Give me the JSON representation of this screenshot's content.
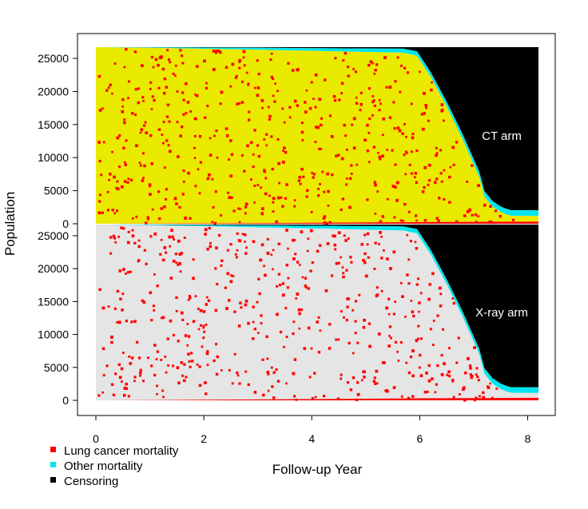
{
  "chart_data": {
    "type": "area",
    "xlabel": "Follow-up Year",
    "ylabel": "Population",
    "xlim": [
      0,
      8.2
    ],
    "ylim": [
      0,
      26700
    ],
    "x_ticks": [
      "0",
      "2",
      "4",
      "6",
      "8"
    ],
    "y_ticks": [
      "0",
      "5000",
      "10000",
      "15000",
      "20000",
      "25000"
    ],
    "legend": {
      "position": "bottom-left",
      "entries": [
        {
          "label": "Lung cancer mortality",
          "color": "#ff0000"
        },
        {
          "label": "Other mortality",
          "color": "#00e5ee"
        },
        {
          "label": "Censoring",
          "color": "#000000"
        }
      ]
    },
    "panels": [
      {
        "arm_label": "CT arm",
        "alive_color": "#eaea00",
        "x": [
          0,
          1,
          2,
          3,
          4,
          5,
          5.7,
          5.95,
          6.2,
          6.5,
          6.8,
          7.1,
          7.2,
          7.35,
          7.5,
          7.62,
          7.7,
          8.2
        ],
        "lung_cancer_mortality": [
          0,
          30,
          60,
          100,
          140,
          190,
          230,
          240,
          250,
          260,
          270,
          280,
          285,
          290,
          300,
          300,
          300,
          320
        ],
        "other_mortality": [
          0,
          80,
          180,
          300,
          420,
          540,
          620,
          650,
          690,
          730,
          770,
          800,
          810,
          820,
          830,
          840,
          850,
          860
        ],
        "censoring": [
          0,
          0,
          0,
          0,
          0,
          0,
          0,
          400,
          3500,
          8000,
          13000,
          18500,
          21500,
          23000,
          23800,
          24200,
          24350,
          24350
        ]
      },
      {
        "arm_label": "X-ray arm",
        "alive_color": "#e5e5e5",
        "x": [
          0,
          1,
          2,
          3,
          4,
          5,
          5.7,
          5.95,
          6.2,
          6.5,
          6.8,
          7.1,
          7.2,
          7.35,
          7.5,
          7.62,
          7.7,
          8.2
        ],
        "lung_cancer_mortality": [
          0,
          40,
          80,
          130,
          180,
          240,
          290,
          300,
          310,
          320,
          330,
          340,
          345,
          350,
          360,
          360,
          360,
          380
        ],
        "other_mortality": [
          0,
          80,
          180,
          300,
          420,
          540,
          620,
          650,
          690,
          730,
          770,
          800,
          810,
          820,
          830,
          840,
          850,
          860
        ],
        "censoring": [
          0,
          0,
          0,
          0,
          0,
          0,
          0,
          400,
          3500,
          8000,
          13000,
          18500,
          21500,
          23000,
          23800,
          24200,
          24350,
          24350
        ]
      }
    ],
    "initial_population": 26700
  }
}
